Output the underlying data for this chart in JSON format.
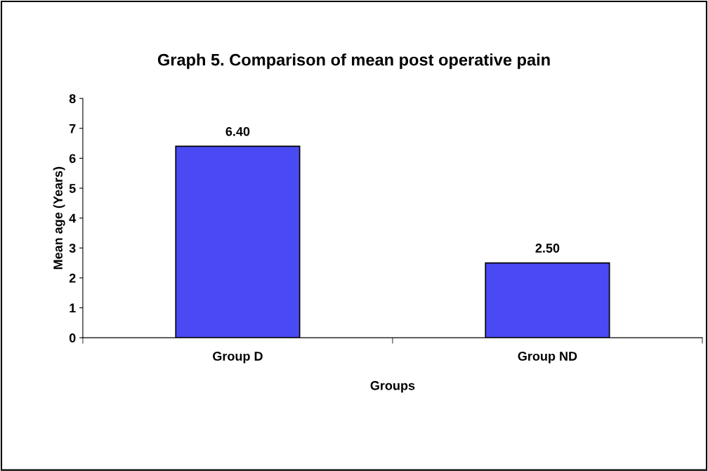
{
  "chart_data": {
    "type": "bar",
    "title": "Graph 5. Comparison of mean post operative pain",
    "xlabel": "Groups",
    "ylabel": "Mean age (Years)",
    "categories": [
      "Group D",
      "Group ND"
    ],
    "values": [
      6.4,
      2.5
    ],
    "value_labels": [
      "6.40",
      "2.50"
    ],
    "color": "#4a4af5",
    "ylim": [
      0,
      8
    ],
    "yticks": [
      0,
      1,
      2,
      3,
      4,
      5,
      6,
      7,
      8
    ],
    "grid": false,
    "legend": false
  }
}
